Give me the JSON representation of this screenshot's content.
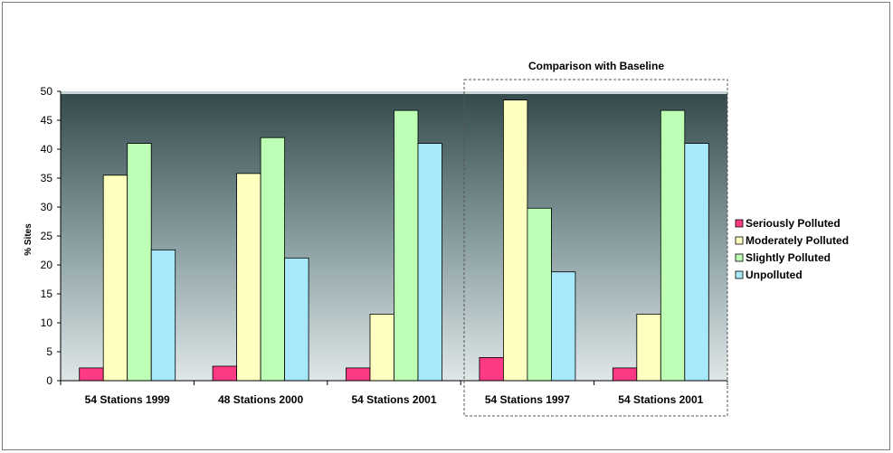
{
  "chart_data": {
    "type": "bar",
    "title": "",
    "xlabel": "",
    "ylabel": "% Sites",
    "ylim": [
      0,
      50
    ],
    "yticks": [
      0,
      5,
      10,
      15,
      20,
      25,
      30,
      35,
      40,
      45,
      50
    ],
    "grid": false,
    "legend_position": "right",
    "categories": [
      "54 Stations 1999",
      "48 Stations 2000",
      "54 Stations 2001",
      "54 Stations 1997",
      "54 Stations 2001"
    ],
    "series": [
      {
        "name": "Seriously Polluted",
        "color": "#ff3a85",
        "values": [
          2.2,
          2.5,
          2.2,
          4.0,
          2.2
        ]
      },
      {
        "name": "Moderately Polluted",
        "color": "#ffffbf",
        "values": [
          35.5,
          35.8,
          11.5,
          48.5,
          11.5
        ]
      },
      {
        "name": "Slightly Polluted",
        "color": "#bdffb4",
        "values": [
          41.0,
          42.0,
          46.7,
          29.8,
          46.7
        ]
      },
      {
        "name": "Unpolluted",
        "color": "#a7e8fa",
        "values": [
          22.6,
          21.2,
          41.0,
          18.8,
          41.0
        ]
      }
    ],
    "annotation": {
      "text": "Comparison with Baseline",
      "applies_to_categories": [
        "54 Stations 1997",
        "54 Stations 2001"
      ]
    }
  }
}
